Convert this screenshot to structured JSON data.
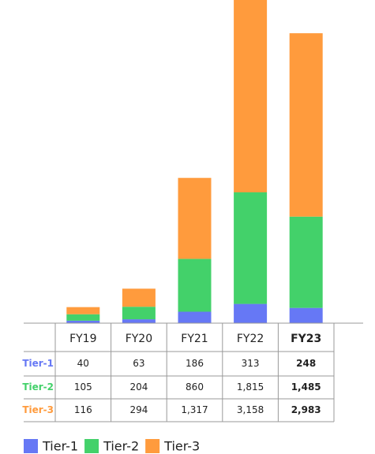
{
  "chart_data": {
    "type": "stacked_bar",
    "categories": [
      "FY19",
      "FY20",
      "FY21",
      "FY22",
      "FY23"
    ],
    "series": [
      {
        "name": "Tier-1",
        "color": "#6678f5",
        "values": [
          40,
          63,
          186,
          313,
          248
        ]
      },
      {
        "name": "Tier-2",
        "color": "#43d16a",
        "values": [
          105,
          204,
          860,
          1815,
          1485
        ],
        "value_labels": [
          "105",
          "204",
          "860",
          "1,815",
          "1,485"
        ]
      },
      {
        "name": "Tier-3",
        "color": "#ff9b3d",
        "values": [
          116,
          294,
          1317,
          3158,
          2983
        ],
        "value_labels": [
          "116",
          "294",
          "1,317",
          "3,158",
          "2,983"
        ]
      }
    ]
  }
}
